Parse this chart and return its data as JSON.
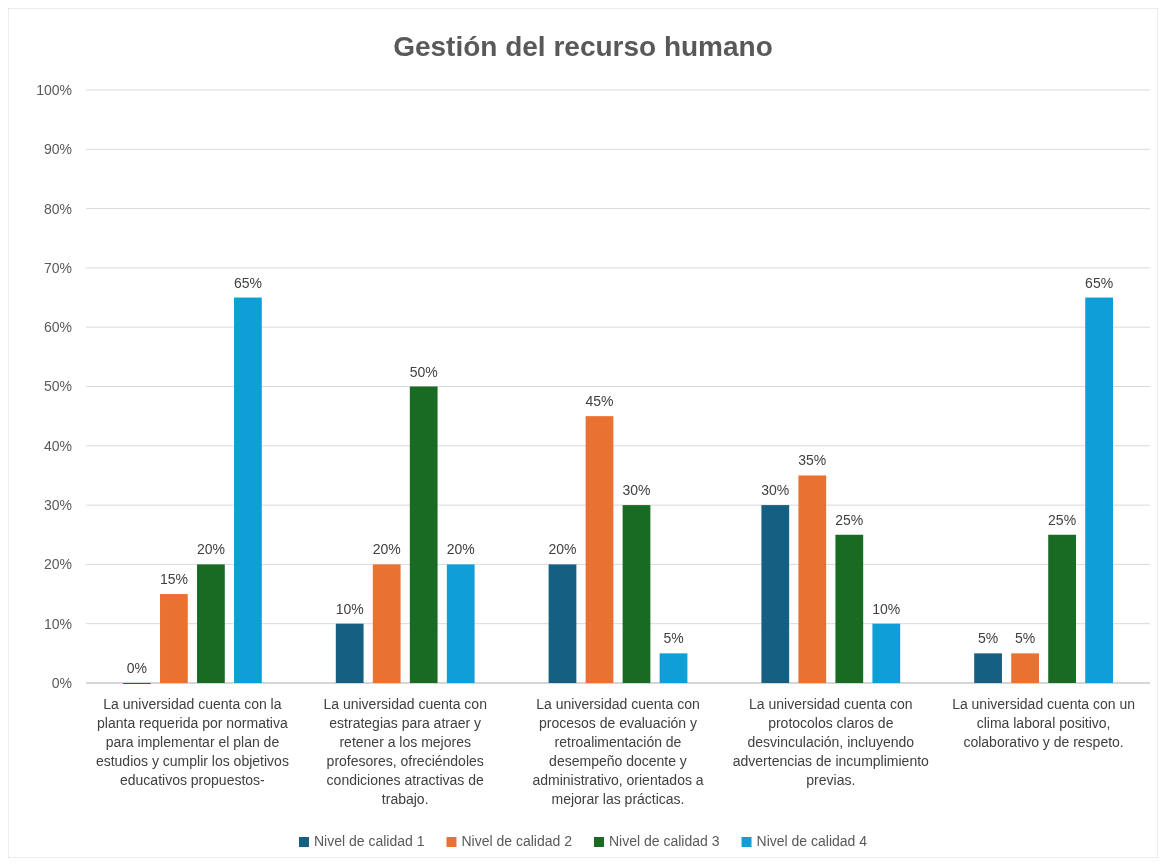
{
  "chart_data": {
    "type": "bar",
    "title": "Gestión del recurso humano",
    "categories": [
      "La universidad cuenta con la planta requerida por normativa para implementar el plan de estudios y cumplir los objetivos educativos propuestos-",
      "La universidad cuenta con estrategias para atraer y retener a los mejores profesores, ofreciéndoles condiciones atractivas de trabajo.",
      "La universidad cuenta con procesos de evaluación y retroalimentación de desempeño docente y administrativo, orientados a mejorar las prácticas.",
      "La universidad cuenta con protocolos claros de desvinculación, incluyendo advertencias de incumplimiento previas.",
      "La universidad cuenta con un clima laboral positivo, colaborativo y de respeto."
    ],
    "series": [
      {
        "name": "Nivel de calidad 1",
        "color": "#156082",
        "values": [
          0,
          10,
          20,
          30,
          5
        ],
        "value_labels": [
          "0%",
          "10%",
          "20%",
          "30%",
          "5%"
        ]
      },
      {
        "name": "Nivel de calidad 2",
        "color": "#e97132",
        "values": [
          15,
          20,
          45,
          35,
          5
        ],
        "value_labels": [
          "15%",
          "20%",
          "45%",
          "35%",
          "5%"
        ]
      },
      {
        "name": "Nivel de calidad 3",
        "color": "#196b24",
        "values": [
          20,
          50,
          30,
          25,
          25
        ],
        "value_labels": [
          "20%",
          "50%",
          "30%",
          "25%",
          "25%"
        ]
      },
      {
        "name": "Nivel de calidad 4",
        "color": "#0f9ed5",
        "values": [
          65,
          20,
          5,
          10,
          65
        ],
        "value_labels": [
          "65%",
          "20%",
          "5%",
          "10%",
          "65%"
        ]
      }
    ],
    "ylim": [
      0,
      100
    ],
    "yticks": [
      {
        "value": 0,
        "label": "0%"
      },
      {
        "value": 10,
        "label": "10%"
      },
      {
        "value": 20,
        "label": "20%"
      },
      {
        "value": 30,
        "label": "30%"
      },
      {
        "value": 40,
        "label": "40%"
      },
      {
        "value": 50,
        "label": "50%"
      },
      {
        "value": 60,
        "label": "60%"
      },
      {
        "value": 70,
        "label": "70%"
      },
      {
        "value": 80,
        "label": "80%"
      },
      {
        "value": 90,
        "label": "90%"
      },
      {
        "value": 100,
        "label": "100%"
      }
    ],
    "grid": "y",
    "legend": "bottom"
  }
}
